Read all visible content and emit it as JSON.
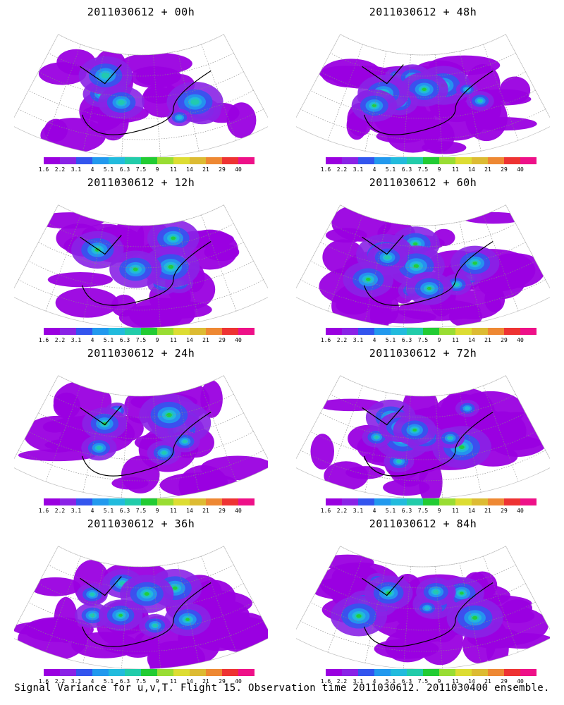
{
  "panels": [
    {
      "title": "2011030612 + 00h",
      "fill": 0.3
    },
    {
      "title": "2011030612 + 48h",
      "fill": 0.65
    },
    {
      "title": "2011030612 + 12h",
      "fill": 0.4
    },
    {
      "title": "2011030612 + 60h",
      "fill": 0.72
    },
    {
      "title": "2011030612 + 24h",
      "fill": 0.52
    },
    {
      "title": "2011030612 + 72h",
      "fill": 0.78
    },
    {
      "title": "2011030612 + 36h",
      "fill": 0.58
    },
    {
      "title": "2011030612 + 84h",
      "fill": 0.85
    }
  ],
  "colorbar": {
    "labels": [
      "1.6",
      "2.2",
      "3.1",
      "4",
      "5.1",
      "6.3",
      "7.5",
      "9",
      "11",
      "14",
      "21",
      "29",
      "40"
    ],
    "colors": [
      "#9a00e0",
      "#8a22e6",
      "#3355ee",
      "#2299ee",
      "#22bbdd",
      "#22ccaa",
      "#22cc33",
      "#99dd33",
      "#dddd33",
      "#ddbb33",
      "#ee8833",
      "#ee3333",
      "#ee1188"
    ]
  },
  "footer": "Signal Variance for u,v,T. Flight 15. Observation time 2011030612. 2011030400 ensemble."
}
